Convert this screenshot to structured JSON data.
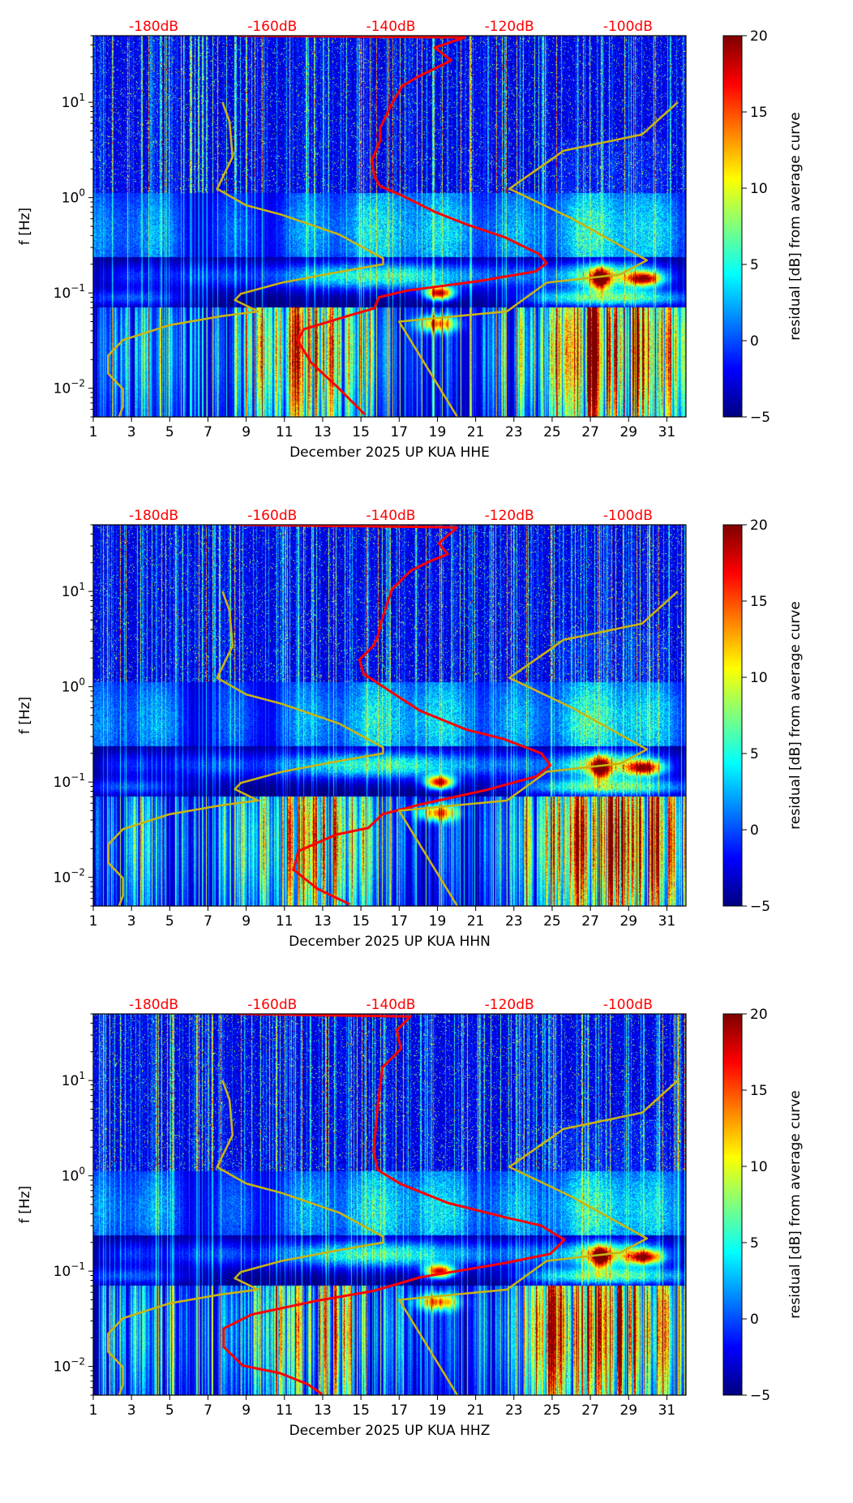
{
  "chart_data": [
    {
      "type": "heatmap",
      "xlabel": "December 2025 UP KUA  HHE",
      "ylabel": "f [Hz]",
      "xlim": [
        1,
        32
      ],
      "ylim": [
        0.005,
        50
      ],
      "yscale": "log",
      "xticks": [
        "1",
        "3",
        "5",
        "7",
        "9",
        "11",
        "13",
        "15",
        "17",
        "19",
        "21",
        "23",
        "25",
        "27",
        "29",
        "31"
      ],
      "yticks": [
        {
          "value": 0.01,
          "base": "10",
          "exp": "−2"
        },
        {
          "value": 0.1,
          "base": "10",
          "exp": "−1"
        },
        {
          "value": 1,
          "base": "10",
          "exp": "0"
        },
        {
          "value": 10,
          "base": "10",
          "exp": "1"
        }
      ],
      "top_axis": {
        "labels": [
          "-180dB",
          "-160dB",
          "-140dB",
          "-120dB",
          "-100dB"
        ],
        "values": [
          -180,
          -160,
          -140,
          -120,
          -100
        ],
        "range_db": [
          -190.2,
          -90.2
        ],
        "color": "#ff0000"
      },
      "colorbar": {
        "label": "residual [dB] from average curve",
        "range": [
          -5,
          20
        ],
        "ticks": [
          "−5",
          "0",
          "5",
          "10",
          "15",
          "20"
        ],
        "tick_values": [
          -5,
          0,
          5,
          10,
          15,
          20
        ],
        "colormap": "jet"
      },
      "curves": [
        {
          "name": "average-psd",
          "color": "#ff0000",
          "points": [
            [
              50,
              -165.8
            ],
            [
              48,
              -127.5
            ],
            [
              37.5,
              -132.6
            ],
            [
              27.5,
              -129.8
            ],
            [
              22.6,
              -132.6
            ],
            [
              18.6,
              -135.4
            ],
            [
              14.8,
              -138.1
            ],
            [
              9.25,
              -140.0
            ],
            [
              5.37,
              -141.8
            ],
            [
              3.93,
              -141.8
            ],
            [
              2.47,
              -143.2
            ],
            [
              1.67,
              -142.8
            ],
            [
              1.32,
              -141.8
            ],
            [
              1.05,
              -138.1
            ],
            [
              0.71,
              -132.6
            ],
            [
              0.52,
              -127.1
            ],
            [
              0.38,
              -120.6
            ],
            [
              0.258,
              -115.1
            ],
            [
              0.205,
              -113.7
            ],
            [
              0.168,
              -115.6
            ],
            [
              0.133,
              -125.2
            ],
            [
              0.106,
              -137.2
            ],
            [
              0.09,
              -142.0
            ],
            [
              0.069,
              -142.8
            ],
            [
              0.057,
              -147.4
            ],
            [
              0.0415,
              -154.7
            ],
            [
              0.0316,
              -155.7
            ],
            [
              0.0184,
              -153.4
            ],
            [
              0.0106,
              -149.2
            ],
            [
              0.0053,
              -144.4
            ]
          ]
        },
        {
          "name": "nlnm",
          "color": "#c8b414",
          "points": [
            [
              10,
              -168.4
            ],
            [
              6.27,
              -167.2
            ],
            [
              2.67,
              -166.7
            ],
            [
              1.24,
              -169.3
            ],
            [
              0.83,
              -164.4
            ],
            [
              0.66,
              -158.4
            ],
            [
              0.41,
              -148.7
            ],
            [
              0.23,
              -141.3
            ],
            [
              0.2,
              -141.3
            ],
            [
              0.164,
              -149.2
            ],
            [
              0.128,
              -158.4
            ],
            [
              0.098,
              -165.3
            ],
            [
              0.084,
              -166.3
            ],
            [
              0.064,
              -162.4
            ],
            [
              0.057,
              -168.6
            ],
            [
              0.046,
              -177.3
            ],
            [
              0.032,
              -185.2
            ],
            [
              0.022,
              -187.7
            ],
            [
              0.0143,
              -187.7
            ],
            [
              0.0098,
              -185.2
            ],
            [
              0.0064,
              -185.2
            ],
            [
              0.0049,
              -185.9
            ]
          ]
        },
        {
          "name": "nhnm",
          "color": "#c8b414",
          "points": [
            [
              10,
              -91.6
            ],
            [
              4.6,
              -97.6
            ],
            [
              3.1,
              -110.9
            ],
            [
              2.67,
              -112.3
            ],
            [
              1.24,
              -120.0
            ],
            [
              0.61,
              -109.6
            ],
            [
              0.22,
              -96.8
            ],
            [
              0.156,
              -101.3
            ],
            [
              0.128,
              -113.7
            ],
            [
              0.064,
              -120.4
            ],
            [
              0.05,
              -138.6
            ],
            [
              0.0049,
              -128.7
            ]
          ]
        }
      ]
    },
    {
      "type": "heatmap",
      "xlabel": "December 2025 UP KUA  HHN",
      "ylabel": "f [Hz]",
      "xlim": [
        1,
        32
      ],
      "ylim": [
        0.005,
        50
      ],
      "yscale": "log",
      "xticks": [
        "1",
        "3",
        "5",
        "7",
        "9",
        "11",
        "13",
        "15",
        "17",
        "19",
        "21",
        "23",
        "25",
        "27",
        "29",
        "31"
      ],
      "yticks": [
        {
          "value": 0.01,
          "base": "10",
          "exp": "−2"
        },
        {
          "value": 0.1,
          "base": "10",
          "exp": "−1"
        },
        {
          "value": 1,
          "base": "10",
          "exp": "0"
        },
        {
          "value": 10,
          "base": "10",
          "exp": "1"
        }
      ],
      "top_axis": {
        "labels": [
          "-180dB",
          "-160dB",
          "-140dB",
          "-120dB",
          "-100dB"
        ],
        "values": [
          -180,
          -160,
          -140,
          -120,
          -100
        ],
        "range_db": [
          -190.2,
          -90.2
        ],
        "color": "#ff0000"
      },
      "colorbar": {
        "label": "residual [dB] from average curve",
        "range": [
          -5,
          20
        ],
        "ticks": [
          "−5",
          "0",
          "5",
          "10",
          "15",
          "20"
        ],
        "tick_values": [
          -5,
          0,
          5,
          10,
          15,
          20
        ],
        "colormap": "jet"
      },
      "curves": [
        {
          "name": "average-psd",
          "color": "#ff0000",
          "points": [
            [
              50,
              -165.8
            ],
            [
              47,
              -128.8
            ],
            [
              32,
              -131.9
            ],
            [
              24.6,
              -130.4
            ],
            [
              20.6,
              -133.5
            ],
            [
              16.4,
              -136.7
            ],
            [
              10.5,
              -139.8
            ],
            [
              5.3,
              -141.4
            ],
            [
              3.4,
              -142.2
            ],
            [
              2.7,
              -142.9
            ],
            [
              1.92,
              -145.3
            ],
            [
              1.37,
              -144.6
            ],
            [
              0.87,
              -139.8
            ],
            [
              0.56,
              -135.1
            ],
            [
              0.354,
              -127.2
            ],
            [
              0.282,
              -120.9
            ],
            [
              0.2,
              -114.6
            ],
            [
              0.15,
              -113.1
            ],
            [
              0.115,
              -115.4
            ],
            [
              0.082,
              -124.1
            ],
            [
              0.058,
              -135.1
            ],
            [
              0.046,
              -141.4
            ],
            [
              0.033,
              -143.8
            ],
            [
              0.028,
              -149.3
            ],
            [
              0.0188,
              -155.6
            ],
            [
              0.012,
              -156.4
            ],
            [
              0.0076,
              -152.4
            ],
            [
              0.0052,
              -146.9
            ]
          ]
        },
        {
          "name": "nlnm",
          "color": "#c8b414",
          "points": [
            [
              10,
              -168.4
            ],
            [
              6.27,
              -167.2
            ],
            [
              2.67,
              -166.7
            ],
            [
              1.24,
              -169.3
            ],
            [
              0.83,
              -164.4
            ],
            [
              0.66,
              -158.4
            ],
            [
              0.41,
              -148.7
            ],
            [
              0.23,
              -141.3
            ],
            [
              0.2,
              -141.3
            ],
            [
              0.164,
              -149.2
            ],
            [
              0.128,
              -158.4
            ],
            [
              0.098,
              -165.3
            ],
            [
              0.084,
              -166.3
            ],
            [
              0.064,
              -162.4
            ],
            [
              0.057,
              -168.6
            ],
            [
              0.046,
              -177.3
            ],
            [
              0.032,
              -185.2
            ],
            [
              0.022,
              -187.7
            ],
            [
              0.0143,
              -187.7
            ],
            [
              0.0098,
              -185.2
            ],
            [
              0.0064,
              -185.2
            ],
            [
              0.0049,
              -185.9
            ]
          ]
        },
        {
          "name": "nhnm",
          "color": "#c8b414",
          "points": [
            [
              10,
              -91.6
            ],
            [
              4.6,
              -97.6
            ],
            [
              3.1,
              -110.9
            ],
            [
              2.67,
              -112.3
            ],
            [
              1.24,
              -120.0
            ],
            [
              0.61,
              -109.6
            ],
            [
              0.22,
              -96.8
            ],
            [
              0.156,
              -101.3
            ],
            [
              0.128,
              -113.7
            ],
            [
              0.064,
              -120.4
            ],
            [
              0.05,
              -138.6
            ],
            [
              0.0049,
              -128.7
            ]
          ]
        }
      ]
    },
    {
      "type": "heatmap",
      "xlabel": "December 2025 UP KUA  HHZ",
      "ylabel": "f [Hz]",
      "xlim": [
        1,
        32
      ],
      "ylim": [
        0.005,
        50
      ],
      "yscale": "log",
      "xticks": [
        "1",
        "3",
        "5",
        "7",
        "9",
        "11",
        "13",
        "15",
        "17",
        "19",
        "21",
        "23",
        "25",
        "27",
        "29",
        "31"
      ],
      "yticks": [
        {
          "value": 0.01,
          "base": "10",
          "exp": "−2"
        },
        {
          "value": 0.1,
          "base": "10",
          "exp": "−1"
        },
        {
          "value": 1,
          "base": "10",
          "exp": "0"
        },
        {
          "value": 10,
          "base": "10",
          "exp": "1"
        }
      ],
      "top_axis": {
        "labels": [
          "-180dB",
          "-160dB",
          "-140dB",
          "-120dB",
          "-100dB"
        ],
        "values": [
          -180,
          -160,
          -140,
          -120,
          -100
        ],
        "range_db": [
          -190.2,
          -90.2
        ],
        "color": "#ff0000"
      },
      "colorbar": {
        "label": "residual [dB] from average curve",
        "range": [
          -5,
          20
        ],
        "ticks": [
          "−5",
          "0",
          "5",
          "10",
          "15",
          "20"
        ],
        "tick_values": [
          -5,
          0,
          5,
          10,
          15,
          20
        ],
        "colormap": "jet"
      },
      "curves": [
        {
          "name": "average-psd",
          "color": "#ff0000",
          "points": [
            [
              50,
              -165.8
            ],
            [
              47,
              -136.7
            ],
            [
              33.7,
              -139.0
            ],
            [
              21.5,
              -138.3
            ],
            [
              13.7,
              -141.4
            ],
            [
              5.6,
              -142.2
            ],
            [
              1.81,
              -142.9
            ],
            [
              1.15,
              -142.2
            ],
            [
              0.82,
              -138.3
            ],
            [
              0.52,
              -130.4
            ],
            [
              0.37,
              -120.9
            ],
            [
              0.3,
              -114.6
            ],
            [
              0.213,
              -110.7
            ],
            [
              0.152,
              -113.1
            ],
            [
              0.121,
              -120.9
            ],
            [
              0.086,
              -135.1
            ],
            [
              0.062,
              -142.9
            ],
            [
              0.049,
              -152.4
            ],
            [
              0.035,
              -163.5
            ],
            [
              0.025,
              -168.2
            ],
            [
              0.016,
              -168.2
            ],
            [
              0.0102,
              -165.0
            ],
            [
              0.0085,
              -158.7
            ],
            [
              0.0065,
              -154.0
            ],
            [
              0.0051,
              -151.6
            ]
          ]
        },
        {
          "name": "nlnm",
          "color": "#c8b414",
          "points": [
            [
              10,
              -168.4
            ],
            [
              6.27,
              -167.2
            ],
            [
              2.67,
              -166.7
            ],
            [
              1.24,
              -169.3
            ],
            [
              0.83,
              -164.4
            ],
            [
              0.66,
              -158.4
            ],
            [
              0.41,
              -148.7
            ],
            [
              0.23,
              -141.3
            ],
            [
              0.2,
              -141.3
            ],
            [
              0.164,
              -149.2
            ],
            [
              0.128,
              -158.4
            ],
            [
              0.098,
              -165.3
            ],
            [
              0.084,
              -166.3
            ],
            [
              0.064,
              -162.4
            ],
            [
              0.057,
              -168.6
            ],
            [
              0.046,
              -177.3
            ],
            [
              0.032,
              -185.2
            ],
            [
              0.022,
              -187.7
            ],
            [
              0.0143,
              -187.7
            ],
            [
              0.0098,
              -185.2
            ],
            [
              0.0064,
              -185.2
            ],
            [
              0.0049,
              -185.9
            ]
          ]
        },
        {
          "name": "nhnm",
          "color": "#c8b414",
          "points": [
            [
              10,
              -91.6
            ],
            [
              4.6,
              -97.6
            ],
            [
              3.1,
              -110.9
            ],
            [
              2.67,
              -112.3
            ],
            [
              1.24,
              -120.0
            ],
            [
              0.61,
              -109.6
            ],
            [
              0.22,
              -96.8
            ],
            [
              0.156,
              -101.3
            ],
            [
              0.128,
              -113.7
            ],
            [
              0.064,
              -120.4
            ],
            [
              0.05,
              -138.6
            ],
            [
              0.0049,
              -128.7
            ]
          ]
        }
      ]
    }
  ]
}
